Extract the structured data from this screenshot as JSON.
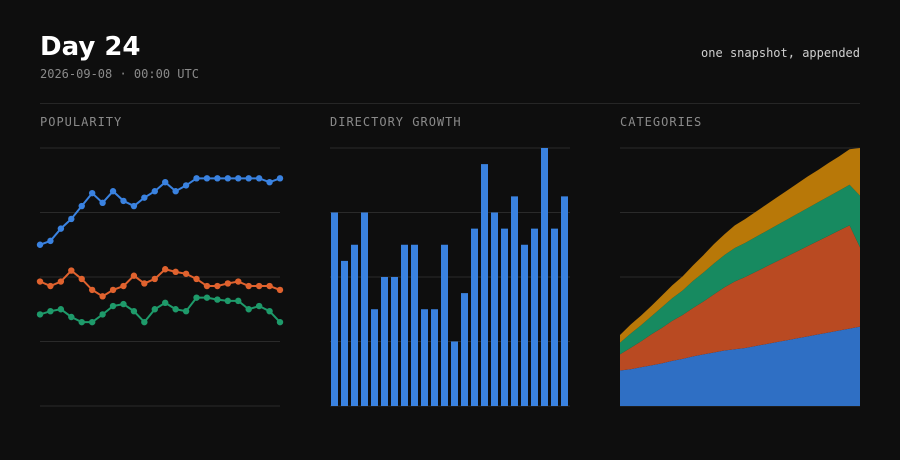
{
  "header": {
    "title": "Day 24",
    "subtitle": "2026-09-08 · 00:00 UTC",
    "note": "one snapshot, appended"
  },
  "colors": {
    "background": "#0e0e0e",
    "grid": "#2a2a2a",
    "blue": "#3a82e0",
    "orange": "#e0622e",
    "green": "#1e9a6a",
    "amber": "#b87808",
    "area_blue": "#2f6fc4",
    "area_orange": "#b94a22",
    "area_green": "#178a60"
  },
  "panels": {
    "popularity": {
      "title": "POPULARITY"
    },
    "directory": {
      "title": "DIRECTORY GROWTH"
    },
    "categories": {
      "title": "CATEGORIES"
    }
  },
  "chart_data": [
    {
      "type": "line",
      "title": "POPULARITY",
      "ylim": [
        0,
        4
      ],
      "grid": true,
      "x": [
        1,
        2,
        3,
        4,
        5,
        6,
        7,
        8,
        9,
        10,
        11,
        12,
        13,
        14,
        15,
        16,
        17,
        18,
        19,
        20,
        21,
        22,
        23,
        24
      ],
      "series": [
        {
          "color": "blue",
          "values": [
            2.5,
            2.56,
            2.75,
            2.9,
            3.1,
            3.3,
            3.15,
            3.33,
            3.18,
            3.1,
            3.23,
            3.33,
            3.47,
            3.33,
            3.42,
            3.53,
            3.53,
            3.53,
            3.53,
            3.53,
            3.53,
            3.53,
            3.47,
            3.53
          ]
        },
        {
          "color": "orange",
          "values": [
            1.93,
            1.86,
            1.93,
            2.1,
            1.97,
            1.8,
            1.7,
            1.8,
            1.86,
            2.02,
            1.9,
            1.97,
            2.12,
            2.08,
            2.05,
            1.97,
            1.86,
            1.86,
            1.9,
            1.93,
            1.86,
            1.86,
            1.86,
            1.8
          ]
        },
        {
          "color": "green",
          "values": [
            1.42,
            1.47,
            1.5,
            1.38,
            1.3,
            1.3,
            1.42,
            1.55,
            1.58,
            1.47,
            1.3,
            1.5,
            1.6,
            1.5,
            1.47,
            1.68,
            1.68,
            1.65,
            1.63,
            1.63,
            1.5,
            1.55,
            1.47,
            1.3
          ]
        }
      ]
    },
    {
      "type": "bar",
      "title": "DIRECTORY GROWTH",
      "ylim": [
        0,
        4
      ],
      "grid": true,
      "x": [
        1,
        2,
        3,
        4,
        5,
        6,
        7,
        8,
        9,
        10,
        11,
        12,
        13,
        14,
        15,
        16,
        17,
        18,
        19,
        20,
        21,
        22,
        23,
        24
      ],
      "values": [
        3,
        2.25,
        2.5,
        3,
        1.5,
        2,
        2,
        2.5,
        2.5,
        1.5,
        1.5,
        2.5,
        1,
        1.75,
        2.75,
        3.75,
        3,
        2.75,
        3.25,
        2.5,
        2.75,
        4,
        2.75,
        3.25
      ],
      "color": "blue"
    },
    {
      "type": "area",
      "title": "CATEGORIES",
      "stacked": true,
      "ylim": [
        0,
        4
      ],
      "grid": true,
      "x": [
        1,
        2,
        3,
        4,
        5,
        6,
        7,
        8,
        9,
        10,
        11,
        12,
        13,
        14,
        15,
        16,
        17,
        18,
        19,
        20,
        21,
        22,
        23,
        24
      ],
      "series": [
        {
          "color": "area_blue",
          "values": [
            0.55,
            0.57,
            0.6,
            0.63,
            0.66,
            0.7,
            0.73,
            0.77,
            0.8,
            0.83,
            0.86,
            0.88,
            0.9,
            0.93,
            0.96,
            0.99,
            1.02,
            1.05,
            1.08,
            1.11,
            1.14,
            1.17,
            1.2,
            1.23
          ]
        },
        {
          "color": "area_orange",
          "values": [
            0.25,
            0.33,
            0.4,
            0.48,
            0.55,
            0.62,
            0.68,
            0.75,
            0.82,
            0.9,
            0.98,
            1.05,
            1.1,
            1.15,
            1.2,
            1.25,
            1.3,
            1.35,
            1.4,
            1.45,
            1.5,
            1.55,
            1.6,
            1.23
          ]
        },
        {
          "color": "area_green",
          "values": [
            0.18,
            0.22,
            0.25,
            0.28,
            0.32,
            0.35,
            0.38,
            0.42,
            0.45,
            0.48,
            0.5,
            0.52,
            0.53,
            0.54,
            0.55,
            0.56,
            0.57,
            0.58,
            0.59,
            0.6,
            0.61,
            0.62,
            0.63,
            0.8
          ]
        },
        {
          "color": "amber",
          "values": [
            0.12,
            0.14,
            0.15,
            0.16,
            0.18,
            0.2,
            0.22,
            0.24,
            0.27,
            0.3,
            0.32,
            0.35,
            0.37,
            0.39,
            0.41,
            0.43,
            0.45,
            0.47,
            0.49,
            0.5,
            0.52,
            0.53,
            0.55,
            0.74
          ]
        }
      ]
    }
  ]
}
